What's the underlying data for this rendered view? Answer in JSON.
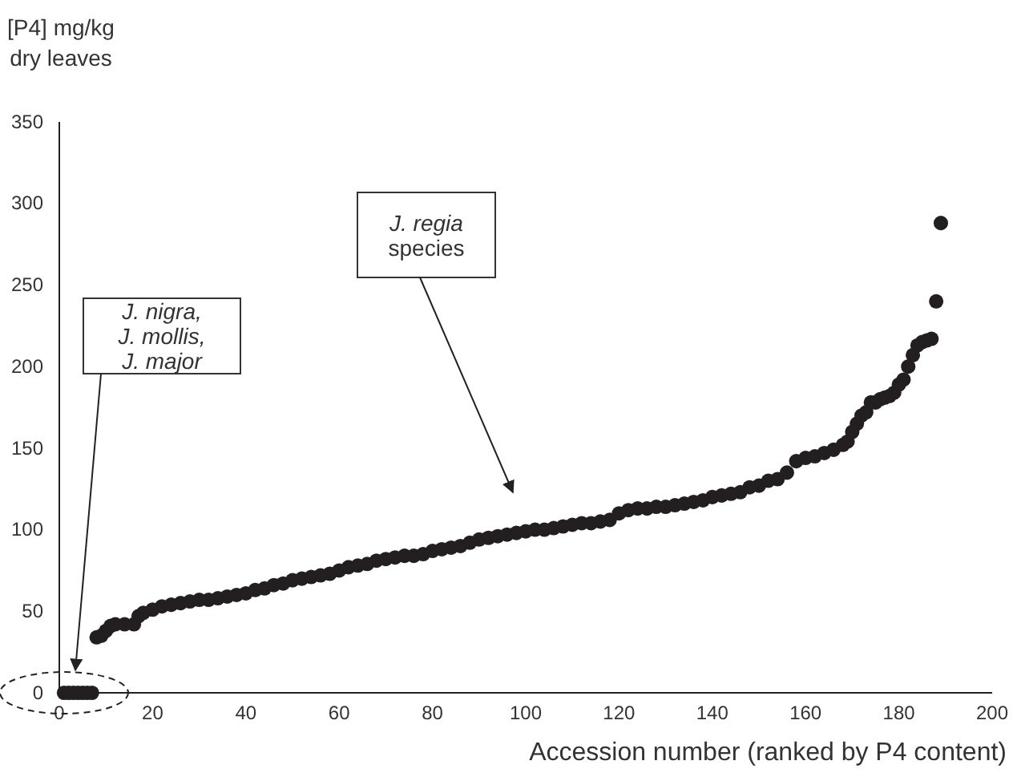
{
  "chart_data": {
    "type": "scatter",
    "xlabel": "Accession number (ranked by P4 content)",
    "ylabel": "[P4] mg/kg\ndry leaves",
    "xlim": [
      0,
      200
    ],
    "xticks": [
      0,
      20,
      40,
      60,
      80,
      100,
      120,
      140,
      160,
      180,
      200
    ],
    "ylim": [
      0,
      350
    ],
    "yticks": [
      0,
      50,
      100,
      150,
      200,
      250,
      300,
      350
    ],
    "grid": false,
    "marker": "circle",
    "series": [
      {
        "color": "#231f20",
        "x": [
          1,
          2,
          3,
          4,
          5,
          6,
          7,
          8,
          9,
          10,
          11,
          12,
          14,
          16,
          17,
          18,
          20,
          22,
          24,
          26,
          28,
          30,
          32,
          34,
          36,
          38,
          40,
          42,
          44,
          46,
          48,
          50,
          52,
          54,
          56,
          58,
          60,
          62,
          64,
          66,
          68,
          70,
          72,
          74,
          76,
          78,
          80,
          82,
          84,
          86,
          88,
          90,
          92,
          94,
          96,
          98,
          100,
          102,
          104,
          106,
          108,
          110,
          112,
          114,
          116,
          118,
          120,
          122,
          124,
          126,
          128,
          130,
          132,
          134,
          136,
          138,
          140,
          142,
          144,
          146,
          148,
          150,
          152,
          154,
          156,
          158,
          160,
          162,
          164,
          166,
          168,
          169,
          170,
          171,
          172,
          173,
          174,
          175,
          176,
          177,
          178,
          179,
          180,
          181,
          182,
          183,
          184,
          185,
          186,
          187,
          188,
          189
        ],
        "values": [
          0,
          0,
          0,
          0,
          0,
          0,
          0,
          34,
          35,
          38,
          41,
          42,
          42,
          42,
          47,
          49,
          51,
          53,
          54,
          55,
          56,
          57,
          57,
          58,
          59,
          60,
          61,
          63,
          64,
          66,
          67,
          69,
          70,
          71,
          72,
          73,
          75,
          77,
          78,
          79,
          81,
          82,
          83,
          84,
          84,
          85,
          87,
          88,
          89,
          90,
          92,
          94,
          95,
          96,
          97,
          98,
          99,
          100,
          100,
          101,
          102,
          103,
          104,
          104,
          105,
          106,
          110,
          112,
          113,
          113,
          114,
          114,
          115,
          116,
          117,
          118,
          120,
          121,
          122,
          123,
          126,
          127,
          130,
          131,
          135,
          142,
          144,
          145,
          147,
          149,
          152,
          154,
          160,
          165,
          170,
          172,
          178,
          178,
          180,
          181,
          182,
          184,
          189,
          192,
          200,
          207,
          213,
          215,
          216,
          217,
          240,
          288
        ]
      }
    ],
    "annotations": [
      "J. nigra,\nJ. mollis,\nJ. major",
      "J. regia\nspecies"
    ]
  }
}
